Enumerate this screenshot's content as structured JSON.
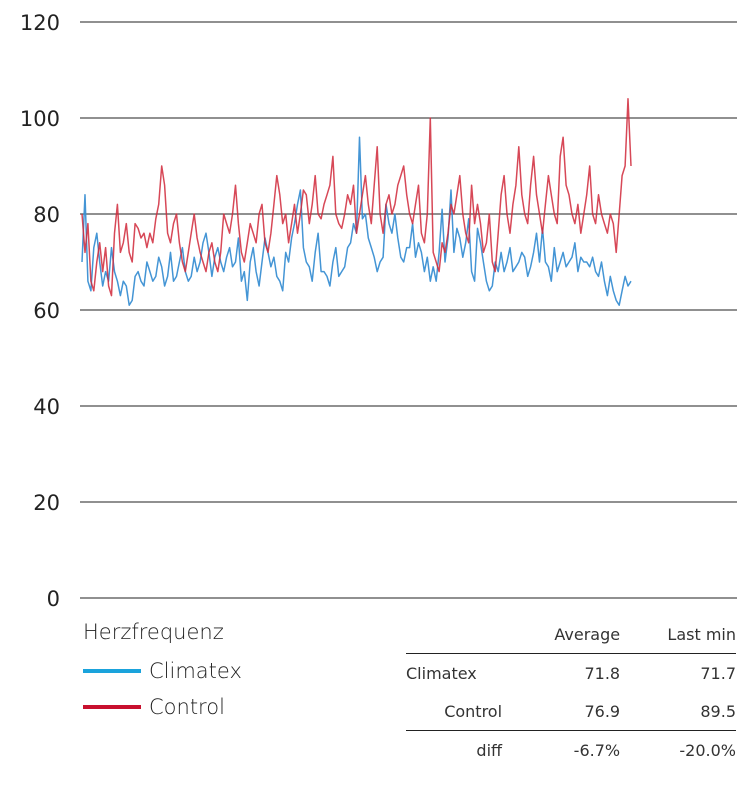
{
  "chart_data": {
    "type": "line",
    "title": "",
    "xlabel": "",
    "ylabel": "",
    "ylim": [
      0,
      120
    ],
    "yticks": [
      0,
      20,
      40,
      60,
      80,
      100,
      120
    ],
    "grid": "horizontal",
    "series": [
      {
        "name": "Climatex",
        "color": "#3a8fd3",
        "values": [
          70,
          84,
          66,
          64,
          73,
          76,
          70,
          65,
          68,
          66,
          73,
          68,
          66,
          63,
          66,
          65,
          61,
          62,
          67,
          68,
          66,
          65,
          70,
          68,
          66,
          67,
          71,
          69,
          65,
          67,
          72,
          66,
          67,
          70,
          73,
          68,
          66,
          67,
          71,
          68,
          70,
          74,
          76,
          72,
          67,
          71,
          73,
          70,
          68,
          71,
          73,
          69,
          70,
          75,
          66,
          68,
          62,
          70,
          73,
          68,
          65,
          70,
          75,
          72,
          69,
          71,
          67,
          66,
          64,
          72,
          70,
          75,
          78,
          82,
          85,
          73,
          70,
          69,
          66,
          72,
          76,
          68,
          68,
          67,
          65,
          70,
          73,
          67,
          68,
          69,
          73,
          74,
          78,
          76,
          96,
          79,
          80,
          75,
          73,
          71,
          68,
          70,
          71,
          82,
          78,
          76,
          80,
          75,
          71,
          70,
          73,
          73,
          78,
          71,
          74,
          72,
          68,
          71,
          66,
          69,
          66,
          72,
          81,
          70,
          75,
          85,
          72,
          77,
          75,
          71,
          74,
          79,
          68,
          66,
          77,
          74,
          70,
          66,
          64,
          65,
          70,
          68,
          72,
          68,
          70,
          73,
          68,
          69,
          70,
          72,
          71,
          67,
          69,
          72,
          76,
          70,
          77,
          70,
          69,
          66,
          73,
          68,
          70,
          72,
          69,
          70,
          71,
          74,
          68,
          71,
          70,
          70,
          69,
          71,
          68,
          67,
          70,
          66,
          63,
          67,
          64,
          62,
          61,
          64,
          67,
          65,
          66
        ]
      },
      {
        "name": "Control",
        "color": "#d0283a",
        "values": [
          80,
          72,
          78,
          66,
          64,
          70,
          74,
          68,
          73,
          65,
          63,
          76,
          82,
          72,
          74,
          78,
          72,
          70,
          78,
          77,
          75,
          76,
          73,
          76,
          74,
          79,
          82,
          90,
          86,
          76,
          74,
          78,
          80,
          74,
          70,
          68,
          72,
          76,
          80,
          75,
          72,
          70,
          68,
          72,
          74,
          70,
          68,
          72,
          80,
          78,
          76,
          80,
          86,
          78,
          72,
          70,
          74,
          78,
          76,
          74,
          80,
          82,
          74,
          72,
          76,
          82,
          88,
          84,
          78,
          80,
          74,
          78,
          82,
          76,
          80,
          85,
          84,
          78,
          82,
          88,
          80,
          79,
          82,
          84,
          86,
          92,
          80,
          78,
          77,
          80,
          84,
          82,
          86,
          76,
          80,
          84,
          88,
          82,
          78,
          86,
          94,
          80,
          76,
          82,
          84,
          80,
          82,
          86,
          88,
          90,
          84,
          80,
          78,
          82,
          86,
          76,
          74,
          80,
          100,
          72,
          70,
          68,
          74,
          72,
          76,
          82,
          80,
          84,
          88,
          80,
          76,
          74,
          86,
          78,
          82,
          78,
          72,
          74,
          80,
          70,
          68,
          76,
          84,
          88,
          80,
          76,
          82,
          86,
          94,
          84,
          80,
          78,
          86,
          92,
          84,
          80,
          76,
          82,
          88,
          84,
          80,
          78,
          92,
          96,
          86,
          84,
          80,
          78,
          82,
          76,
          80,
          84,
          90,
          80,
          78,
          84,
          80,
          78,
          76,
          80,
          78,
          72,
          80,
          88,
          90,
          104,
          90
        ]
      }
    ]
  },
  "legend": {
    "title": "Herzfrequenz",
    "items": [
      {
        "label": "Climatex",
        "color": "#1aa3dc"
      },
      {
        "label": "Control",
        "color": "#c8102e"
      }
    ]
  },
  "stats_table": {
    "headers": [
      "",
      "Average",
      "Last min"
    ],
    "rows": [
      {
        "label": "Climatex",
        "average": "71.8",
        "last_min": "71.7"
      },
      {
        "label": "Control",
        "average": "76.9",
        "last_min": "89.5"
      },
      {
        "label": "diff",
        "average": "-6.7%",
        "last_min": "-20.0%"
      }
    ]
  }
}
